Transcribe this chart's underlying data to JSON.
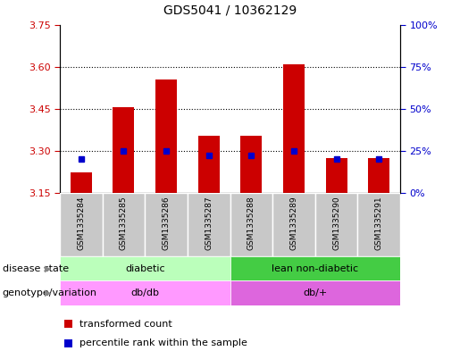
{
  "title": "GDS5041 / 10362129",
  "samples": [
    "GSM1335284",
    "GSM1335285",
    "GSM1335286",
    "GSM1335287",
    "GSM1335288",
    "GSM1335289",
    "GSM1335290",
    "GSM1335291"
  ],
  "red_top": [
    3.225,
    3.455,
    3.555,
    3.355,
    3.355,
    3.61,
    3.275,
    3.275
  ],
  "red_bottom": [
    3.15,
    3.15,
    3.15,
    3.15,
    3.15,
    3.15,
    3.15,
    3.15
  ],
  "blue_val": [
    3.27,
    3.3,
    3.3,
    3.285,
    3.285,
    3.3,
    3.27,
    3.27
  ],
  "ylim": [
    3.15,
    3.75
  ],
  "yticks_left": [
    3.15,
    3.3,
    3.45,
    3.6,
    3.75
  ],
  "yticks_right": [
    0,
    25,
    50,
    75,
    100
  ],
  "right_ylim": [
    0,
    100
  ],
  "disease_state_groups": [
    {
      "label": "diabetic",
      "start": 0,
      "end": 4,
      "color": "#bbffbb"
    },
    {
      "label": "lean non-diabetic",
      "start": 4,
      "end": 8,
      "color": "#44cc44"
    }
  ],
  "genotype_groups": [
    {
      "label": "db/db",
      "start": 0,
      "end": 4,
      "color": "#ff99ff"
    },
    {
      "label": "db/+",
      "start": 4,
      "end": 8,
      "color": "#dd66dd"
    }
  ],
  "disease_label": "disease state",
  "genotype_label": "genotype/variation",
  "legend_items": [
    {
      "color": "#cc0000",
      "label": "transformed count"
    },
    {
      "color": "#0000cc",
      "label": "percentile rank within the sample"
    }
  ],
  "bar_color": "#cc0000",
  "blue_color": "#0000cc",
  "bar_width": 0.5,
  "sample_bg_color": "#c8c8c8",
  "plot_bg": "#ffffff",
  "grid_color": "#000000",
  "left_tick_color": "#cc0000",
  "right_tick_color": "#0000cc",
  "grid_yticks": [
    3.3,
    3.45,
    3.6
  ]
}
